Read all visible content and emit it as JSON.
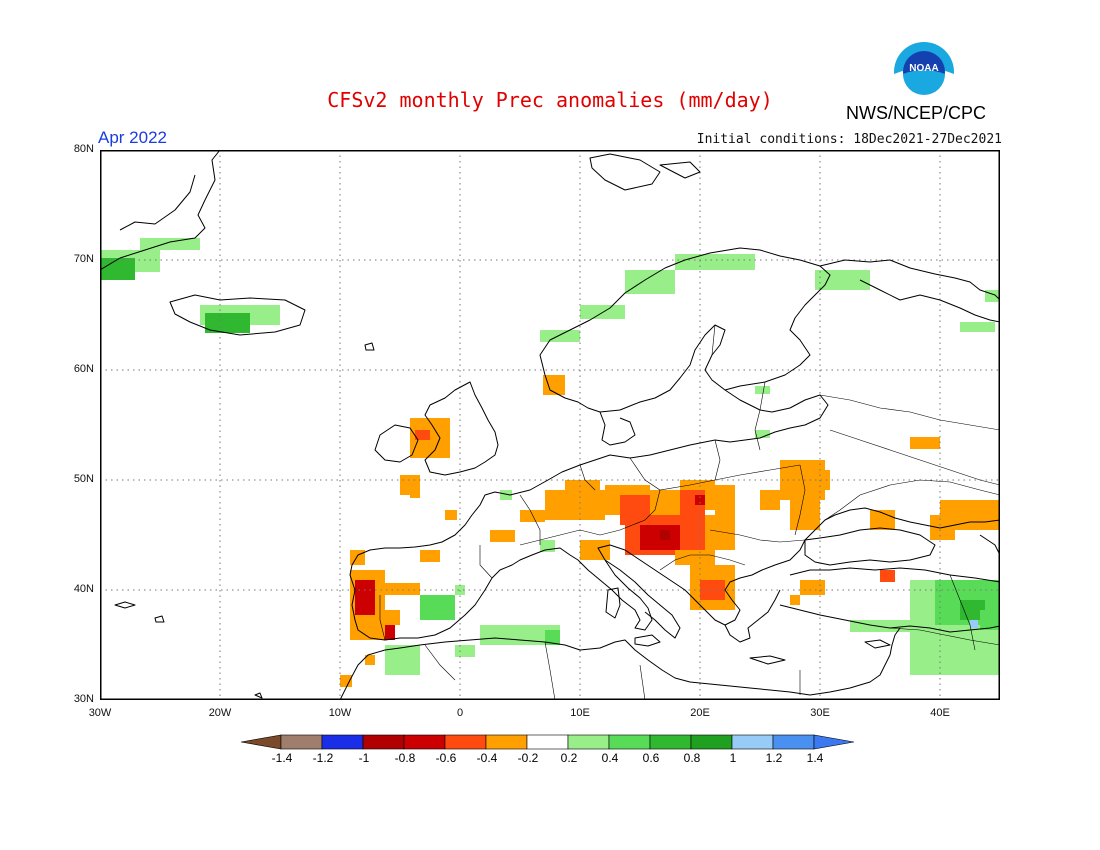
{
  "header": {
    "title": "CFSv2 monthly Prec anomalies (mm/day)",
    "valid_month": "Apr 2022",
    "initial_conditions": "Initial conditions: 18Dec2021-27Dec2021",
    "agency": "NWS/NCEP/CPC",
    "logo_text": "NOAA"
  },
  "map": {
    "lon_range": [
      -30,
      45
    ],
    "lat_range": [
      30,
      80
    ],
    "lat_labels": [
      "80N",
      "70N",
      "60N",
      "50N",
      "40N",
      "30N"
    ],
    "lon_labels": [
      "30W",
      "20W",
      "10W",
      "0",
      "10E",
      "20E",
      "30E",
      "40E"
    ],
    "grid": "dotted"
  },
  "colorbar": {
    "labels": [
      "-1.4",
      "-1.2",
      "-1",
      "-0.8",
      "-0.6",
      "-0.4",
      "-0.2",
      "0.2",
      "0.4",
      "0.6",
      "0.8",
      "1",
      "1.2",
      "1.4"
    ],
    "colors": [
      "#7a4a2a",
      "#a07e6e",
      "#1a2ee8",
      "#b00000",
      "#cc0000",
      "#ff4a10",
      "#ffa000",
      "#ffffff",
      "#98ee88",
      "#58dc58",
      "#30b830",
      "#20a020",
      "#98ccf8",
      "#4a90f0",
      "#3c78f0"
    ]
  },
  "anomaly_colors": {
    "light_green": "#98ee88",
    "green": "#58dc58",
    "dark_green": "#20a020",
    "orange": "#ffa000",
    "red_orange": "#ff4a10",
    "red": "#cc0000"
  }
}
